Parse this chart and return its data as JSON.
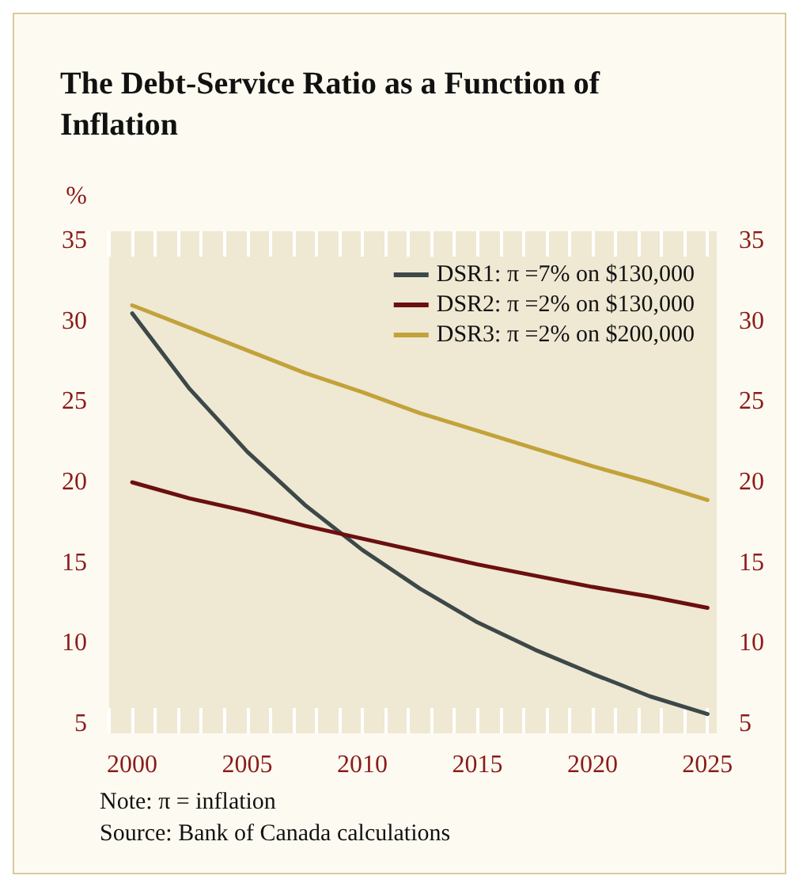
{
  "chart_data": {
    "type": "line",
    "title": "The Debt-Service Ratio as a Function of Inflation",
    "ylabel": "%",
    "x": [
      2000,
      2002.5,
      2005,
      2007.5,
      2010,
      2012.5,
      2015,
      2017.5,
      2020,
      2022.5,
      2025
    ],
    "series": [
      {
        "name": "DSR1: π =7% on $130,000",
        "color": "#3d4848",
        "values": [
          30.5,
          25.8,
          21.9,
          18.6,
          15.8,
          13.4,
          11.3,
          9.6,
          8.1,
          6.7,
          5.6
        ]
      },
      {
        "name": "DSR2: π =2% on $130,000",
        "color": "#6b0f0f",
        "values": [
          20.0,
          19.0,
          18.2,
          17.3,
          16.5,
          15.7,
          14.9,
          14.2,
          13.5,
          12.9,
          12.2
        ]
      },
      {
        "name": "DSR3: π =2% on $200,000",
        "color": "#c2a23a",
        "values": [
          31.0,
          29.6,
          28.2,
          26.8,
          25.6,
          24.3,
          23.2,
          22.1,
          21.0,
          20.0,
          18.9
        ]
      }
    ],
    "xlim": [
      1999,
      2025.4
    ],
    "xticks": [
      {
        "value": 1999,
        "label": null
      },
      2000,
      {
        "value": 2001,
        "label": null
      },
      {
        "value": 2002,
        "label": null
      },
      {
        "value": 2003,
        "label": null
      },
      {
        "value": 2004,
        "label": null
      },
      2005,
      {
        "value": 2006,
        "label": null
      },
      {
        "value": 2007,
        "label": null
      },
      {
        "value": 2008,
        "label": null
      },
      {
        "value": 2009,
        "label": null
      },
      2010,
      {
        "value": 2011,
        "label": null
      },
      {
        "value": 2012,
        "label": null
      },
      {
        "value": 2013,
        "label": null
      },
      {
        "value": 2014,
        "label": null
      },
      2015,
      {
        "value": 2016,
        "label": null
      },
      {
        "value": 2017,
        "label": null
      },
      {
        "value": 2018,
        "label": null
      },
      {
        "value": 2019,
        "label": null
      },
      2020,
      {
        "value": 2021,
        "label": null
      },
      {
        "value": 2022,
        "label": null
      },
      {
        "value": 2023,
        "label": null
      },
      {
        "value": 2024,
        "label": null
      },
      2025
    ],
    "ylim": [
      4.4,
      35.6
    ],
    "yticks": [
      5,
      10,
      15,
      20,
      25,
      30,
      35
    ],
    "y2lim": [
      4.4,
      35.6
    ],
    "y2ticks": [
      5,
      10,
      15,
      20,
      25,
      30,
      35
    ],
    "grid": false,
    "legend": "top right",
    "marker": "none",
    "line_style": "solid",
    "annotations": [
      "Note: π = inflation",
      "Source: Bank of Canada calculations"
    ]
  }
}
